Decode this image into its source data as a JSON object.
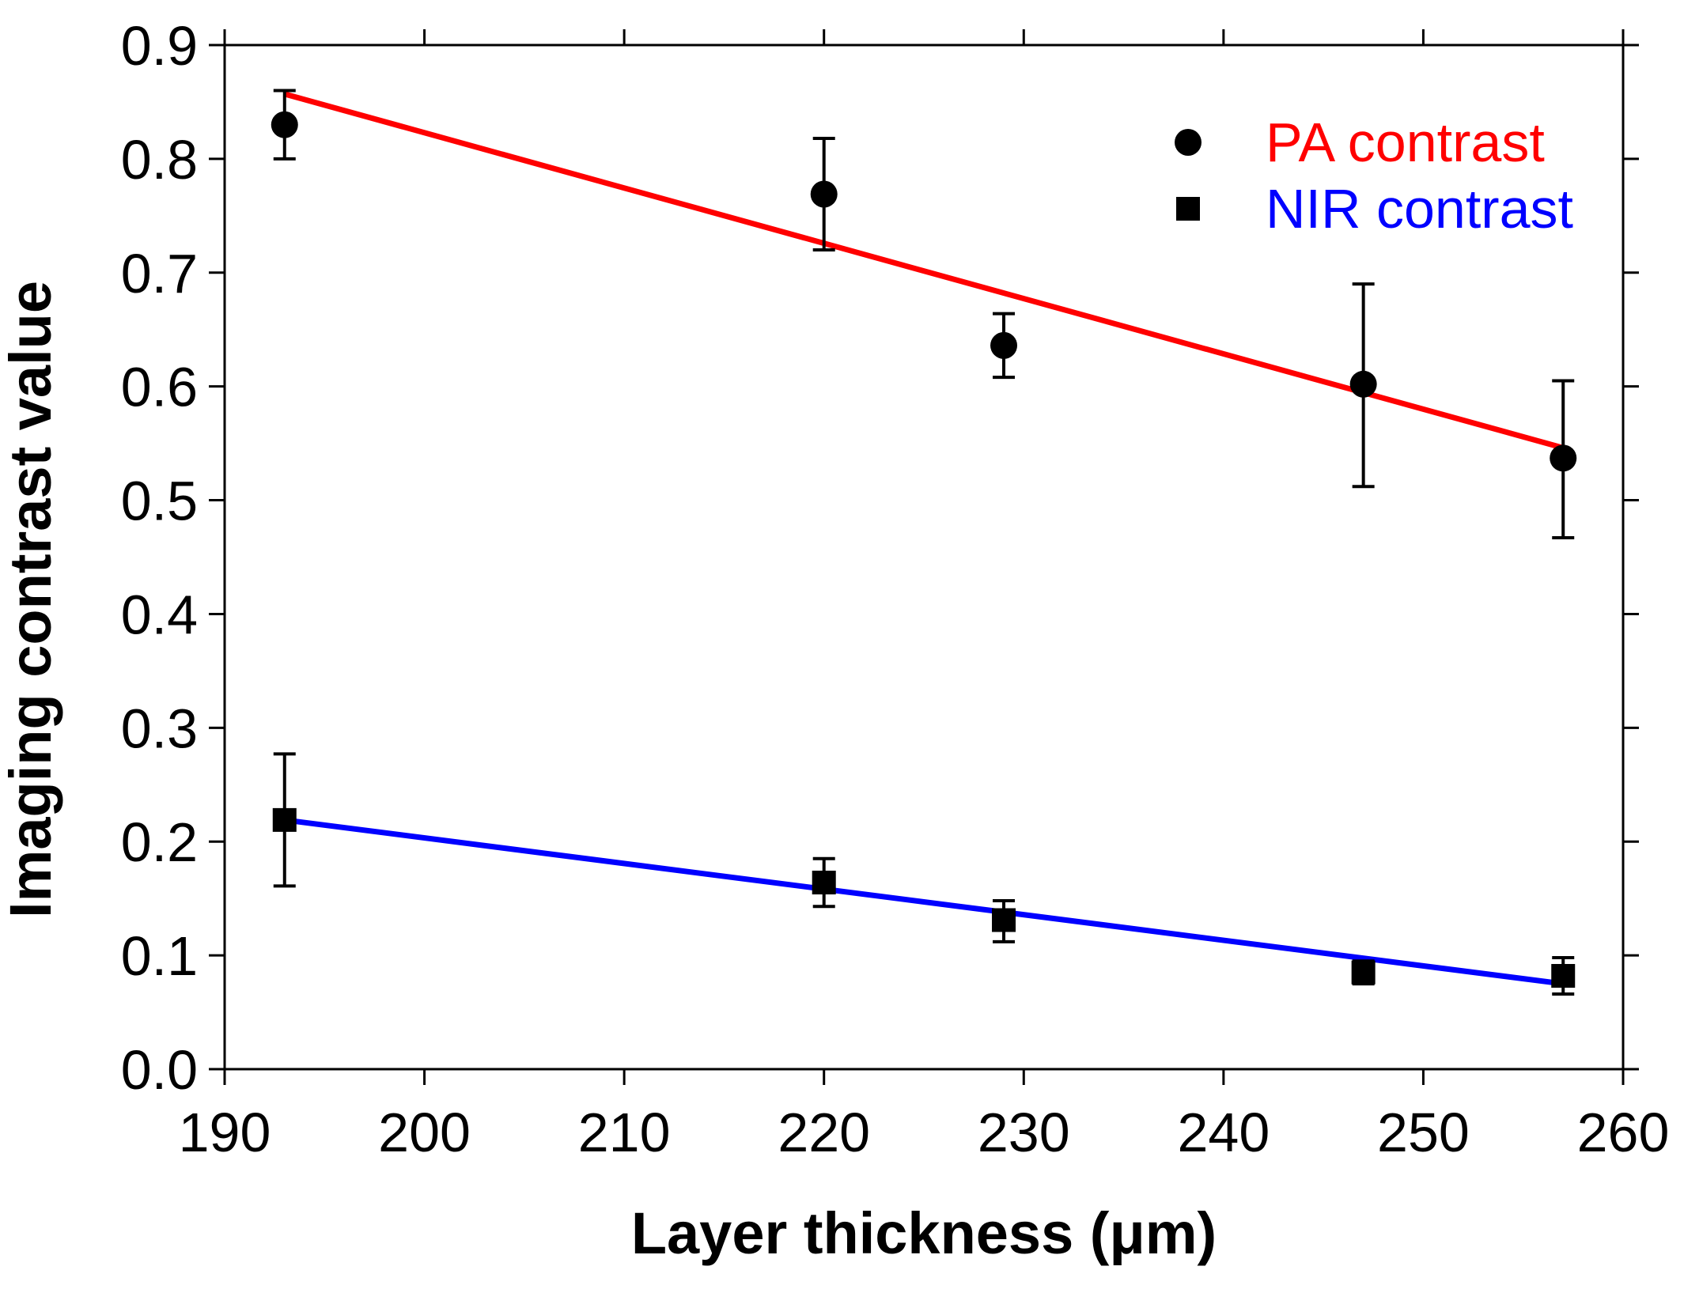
{
  "chart_data": {
    "type": "scatter",
    "title": "",
    "xlabel": "Layer thickness (μm)",
    "ylabel": "Imaging contrast value",
    "xlim": [
      190,
      260
    ],
    "ylim": [
      0.0,
      0.9
    ],
    "xticks": [
      190,
      200,
      210,
      220,
      230,
      240,
      250,
      260
    ],
    "xtick_labels": [
      "190",
      "200",
      "210",
      "220",
      "230",
      "240",
      "250",
      "260"
    ],
    "yticks": [
      0.0,
      0.1,
      0.2,
      0.3,
      0.4,
      0.5,
      0.6,
      0.7,
      0.8,
      0.9
    ],
    "ytick_labels": [
      "0.0",
      "0.1",
      "0.2",
      "0.3",
      "0.4",
      "0.5",
      "0.6",
      "0.7",
      "0.8",
      "0.9"
    ],
    "grid": false,
    "legend_position": "top-right",
    "series": [
      {
        "name": "PA contrast",
        "marker": "circle",
        "marker_color": "#000000",
        "label_color": "#ff0000",
        "fit_color": "#ff0000",
        "x": [
          193,
          220,
          229,
          247,
          257
        ],
        "y": [
          0.83,
          0.769,
          0.636,
          0.602,
          0.537
        ],
        "err_low": [
          0.03,
          0.049,
          0.028,
          0.09,
          0.07
        ],
        "err_high": [
          0.03,
          0.049,
          0.028,
          0.088,
          0.068
        ],
        "fit": {
          "x": [
            193,
            257
          ],
          "y": [
            0.857,
            0.546
          ]
        }
      },
      {
        "name": "NIR contrast",
        "marker": "square",
        "marker_color": "#000000",
        "label_color": "#0000ff",
        "fit_color": "#0000ff",
        "x": [
          193,
          220,
          229,
          247,
          257
        ],
        "y": [
          0.219,
          0.164,
          0.131,
          0.085,
          0.082
        ],
        "err_low": [
          0.058,
          0.021,
          0.019,
          0.01,
          0.016
        ],
        "err_high": [
          0.058,
          0.021,
          0.017,
          0.01,
          0.016
        ],
        "fit": {
          "x": [
            193,
            257
          ],
          "y": [
            0.219,
            0.075
          ]
        }
      }
    ]
  }
}
